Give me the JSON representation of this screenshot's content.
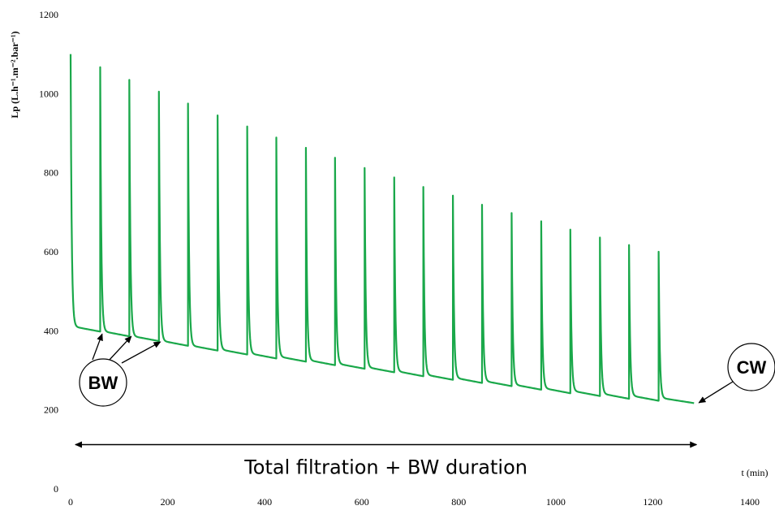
{
  "chart_data": {
    "type": "line",
    "xlabel": "t (min)",
    "ylabel": "Lp (L.h⁻¹.m⁻².bar⁻¹)",
    "xlim": [
      0,
      1400
    ],
    "ylim": [
      0,
      1200
    ],
    "xticks": [
      0,
      200,
      400,
      600,
      800,
      1000,
      1200,
      1400
    ],
    "yticks": [
      0,
      200,
      400,
      600,
      800,
      1000,
      1200
    ],
    "grid": false,
    "legend": "none",
    "series_color": "#1aa84a",
    "series": [
      {
        "cycle_period_min": 60.6,
        "cycles": [
          {
            "start": 0,
            "peak": 1100,
            "end": 398
          },
          {
            "start": 61,
            "peak": 1067,
            "end": 386
          },
          {
            "start": 121,
            "peak": 1035,
            "end": 374
          },
          {
            "start": 182,
            "peak": 1005,
            "end": 362
          },
          {
            "start": 242,
            "peak": 975,
            "end": 350
          },
          {
            "start": 303,
            "peak": 945,
            "end": 340
          },
          {
            "start": 364,
            "peak": 917,
            "end": 330
          },
          {
            "start": 424,
            "peak": 889,
            "end": 322
          },
          {
            "start": 485,
            "peak": 863,
            "end": 313
          },
          {
            "start": 545,
            "peak": 838,
            "end": 304
          },
          {
            "start": 606,
            "peak": 812,
            "end": 295
          },
          {
            "start": 667,
            "peak": 788,
            "end": 285
          },
          {
            "start": 727,
            "peak": 764,
            "end": 276
          },
          {
            "start": 788,
            "peak": 742,
            "end": 268
          },
          {
            "start": 848,
            "peak": 719,
            "end": 260
          },
          {
            "start": 909,
            "peak": 698,
            "end": 251
          },
          {
            "start": 970,
            "peak": 677,
            "end": 242
          },
          {
            "start": 1030,
            "peak": 656,
            "end": 235
          },
          {
            "start": 1091,
            "peak": 636,
            "end": 228
          },
          {
            "start": 1151,
            "peak": 617,
            "end": 223
          },
          {
            "start": 1212,
            "peak": 600,
            "end": 217
          }
        ],
        "end_time": 1285
      }
    ],
    "annotations": {
      "bw_label": "BW",
      "bw_arrow_targets": [
        {
          "x": 65,
          "y": 398
        },
        {
          "x": 125,
          "y": 392
        },
        {
          "x": 185,
          "y": 378
        }
      ],
      "cw_label": "CW",
      "cw_arrow_target": {
        "x": 1285,
        "y": 218
      },
      "span_label": "Total filtration + BW duration",
      "span_from": 10,
      "span_to": 1290,
      "span_y": 112
    }
  }
}
